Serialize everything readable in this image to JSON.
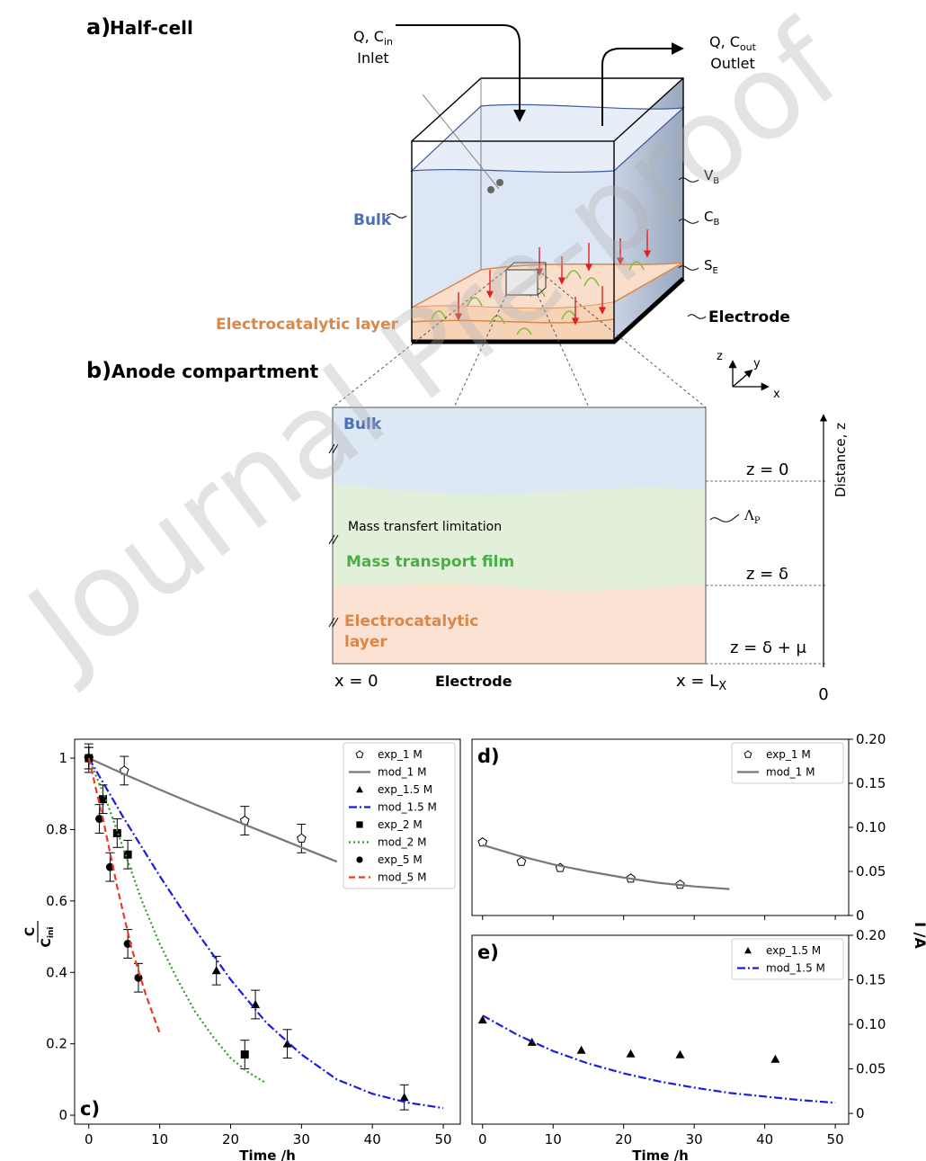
{
  "diagram": {
    "watermark": "Journal Pre-proof",
    "panel_a": {
      "label": "a)",
      "title": "Half-cell"
    },
    "inlet": {
      "flow": {
        "text": "Q, C",
        "sub": "in"
      },
      "label": "Inlet"
    },
    "outlet": {
      "flow": {
        "text": "Q, C",
        "sub": "out"
      },
      "label": "Outlet"
    },
    "half_cell": {
      "bulk": "Bulk",
      "layer": "Electrocatalytic layer",
      "electrode": "Electrode",
      "volume": {
        "text": "V",
        "sub": "B"
      },
      "concentration": {
        "text": "C",
        "sub": "B"
      },
      "surface": {
        "text": "S",
        "sub": "E"
      }
    },
    "panel_b": {
      "label": "b)",
      "title": "Anode compartment"
    },
    "axes": {
      "z": "z",
      "y": "y",
      "x": "x"
    },
    "compartment": {
      "bulk": "Bulk",
      "limitation": "Mass transfert limitation",
      "film": "Mass transport film",
      "layer": [
        "Electrocatalytic",
        "layer"
      ],
      "lambda": {
        "text": "Λ",
        "sub": "P"
      },
      "z0": "z = 0",
      "z_delta": "z = δ",
      "z_delta_mu": "z = δ + μ",
      "x0": "x = 0",
      "electrode": "Electrode",
      "x_end": {
        "text": "x = L",
        "sub": "X"
      },
      "distance": "Distance, z",
      "origin": "0"
    }
  },
  "chart_data": [
    {
      "type": "line",
      "panel_label": "c)",
      "panel_label_corner": "lower left",
      "yaxis": "left",
      "xlabel": "Time /h",
      "ylabel_numerator": "C",
      "ylabel_denominator": "C",
      "ylabel_denominator_sub": "ini",
      "xlim": [
        -2,
        52.4
      ],
      "ylim": [
        -0.025,
        1.053
      ],
      "xticks": [
        0,
        10,
        20,
        30,
        40,
        50
      ],
      "yticks": [
        0,
        0.2,
        0.4,
        0.6,
        0.8,
        1
      ],
      "legend": "upper right",
      "series": [
        {
          "name": "exp_1 M",
          "color": "#000000",
          "marker": "pentagon",
          "x": [
            0,
            5,
            22,
            30
          ],
          "values": [
            1.0,
            0.965,
            0.825,
            0.775
          ],
          "errors": [
            0.04,
            0.04,
            0.04,
            0.04
          ]
        },
        {
          "name": "mod_1 M",
          "color": "#777777",
          "linestyle": "solid",
          "x": [
            0,
            5,
            10,
            15,
            20,
            25,
            30,
            35
          ],
          "values": [
            1.0,
            0.955,
            0.912,
            0.87,
            0.83,
            0.79,
            0.75,
            0.71
          ]
        },
        {
          "name": "exp_1.5 M",
          "color": "#000000",
          "marker": "triangle",
          "x": [
            18,
            23.5,
            28,
            44.5
          ],
          "values": [
            0.405,
            0.31,
            0.2,
            0.05
          ],
          "errors": [
            0.04,
            0.04,
            0.04,
            0.035
          ]
        },
        {
          "name": "mod_1.5 M",
          "color": "#1c1ce0",
          "linestyle": "dashdot",
          "x": [
            0,
            5,
            10,
            15,
            20,
            25,
            30,
            35,
            40,
            45,
            50
          ],
          "values": [
            1.0,
            0.83,
            0.67,
            0.52,
            0.38,
            0.26,
            0.17,
            0.1,
            0.06,
            0.035,
            0.02
          ]
        },
        {
          "name": "exp_2 M",
          "color": "#000000",
          "marker": "square",
          "x": [
            0,
            2,
            4,
            5.5,
            22
          ],
          "values": [
            1.0,
            0.885,
            0.79,
            0.73,
            0.17
          ],
          "errors": [
            0.03,
            0.04,
            0.04,
            0.04,
            0.04
          ]
        },
        {
          "name": "mod_2 M",
          "color": "#2f9a2a",
          "linestyle": "dotted",
          "x": [
            0,
            2.5,
            5,
            7.5,
            10,
            12.5,
            15,
            17.5,
            20,
            22.5,
            25
          ],
          "values": [
            1.0,
            0.88,
            0.74,
            0.6,
            0.48,
            0.38,
            0.29,
            0.22,
            0.16,
            0.12,
            0.09
          ]
        },
        {
          "name": "exp_5 M",
          "color": "#000000",
          "marker": "circle",
          "x": [
            0,
            1.5,
            3,
            5.5,
            7
          ],
          "values": [
            1.0,
            0.83,
            0.695,
            0.48,
            0.385
          ],
          "errors": [
            0.03,
            0.04,
            0.04,
            0.04,
            0.04
          ]
        },
        {
          "name": "mod_5 M",
          "color": "#e8392a",
          "linestyle": "dashed",
          "x": [
            0,
            2,
            4,
            6,
            8,
            10
          ],
          "values": [
            1.0,
            0.83,
            0.64,
            0.47,
            0.34,
            0.23
          ]
        }
      ]
    },
    {
      "type": "line",
      "panel_label": "d)",
      "panel_label_corner": "upper left",
      "yaxis": "right",
      "xtick_labels": false,
      "xlim": [
        -1.5,
        51.9
      ],
      "ylim": [
        0,
        0.2
      ],
      "xticks": [
        0,
        10,
        20,
        30,
        40,
        50
      ],
      "yticks": [
        0,
        0.05,
        {
          "value": 0.1,
          "label": "0.10"
        },
        0.15,
        {
          "value": 0.2,
          "label": "0.20"
        }
      ],
      "legend": "upper right",
      "series": [
        {
          "name": "exp_1 M",
          "color": "#000000",
          "marker": "pentagon",
          "x": [
            0,
            5.5,
            11,
            21,
            28
          ],
          "values": [
            0.083,
            0.061,
            0.054,
            0.042,
            0.035
          ]
        },
        {
          "name": "mod_1 M",
          "color": "#777777",
          "linestyle": "solid",
          "x": [
            0,
            5,
            10,
            15,
            20,
            25,
            30,
            35
          ],
          "values": [
            0.08,
            0.068,
            0.058,
            0.05,
            0.043,
            0.037,
            0.033,
            0.03
          ]
        }
      ]
    },
    {
      "type": "line",
      "panel_label": "e)",
      "panel_label_corner": "upper left",
      "yaxis": "right",
      "xlabel": "Time /h",
      "ylabel": "I /A",
      "xlim": [
        -1.5,
        51.9
      ],
      "ylim": [
        -0.012,
        0.2
      ],
      "xticks": [
        0,
        10,
        20,
        30,
        40,
        50
      ],
      "yticks": [
        0,
        0.05,
        {
          "value": 0.1,
          "label": "0.10"
        },
        0.15,
        {
          "value": 0.2,
          "label": "0.20"
        }
      ],
      "legend": "upper right",
      "series": [
        {
          "name": "exp_1.5 M",
          "color": "#000000",
          "marker": "triangle",
          "x": [
            0,
            7,
            14,
            21,
            28,
            41.5
          ],
          "values": [
            0.105,
            0.08,
            0.071,
            0.067,
            0.066,
            0.061
          ]
        },
        {
          "name": "mod_1.5 M",
          "color": "#1c1ce0",
          "linestyle": "dashdot",
          "x": [
            0,
            5,
            10,
            15,
            20,
            25,
            30,
            35,
            40,
            45,
            50
          ],
          "values": [
            0.11,
            0.088,
            0.07,
            0.056,
            0.045,
            0.036,
            0.029,
            0.023,
            0.019,
            0.015,
            0.012
          ]
        }
      ]
    }
  ]
}
